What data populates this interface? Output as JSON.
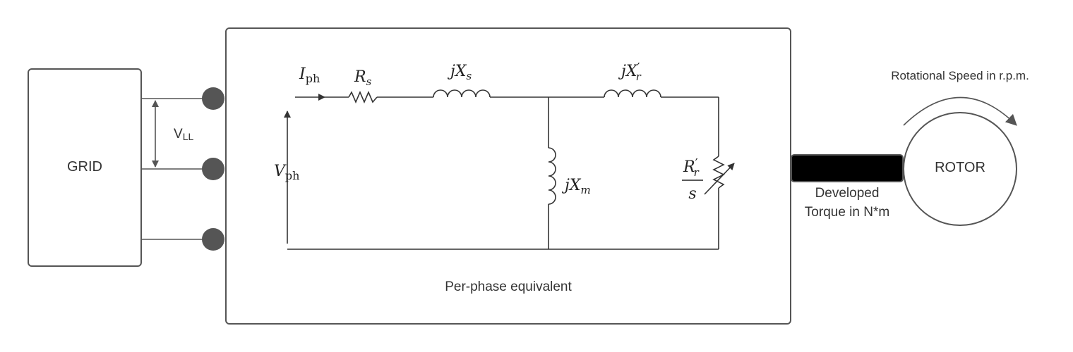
{
  "blocks": {
    "grid": "GRID",
    "rotor": "ROTOR",
    "per_phase_caption": "Per-phase equivalent"
  },
  "labels": {
    "vll_main": "V",
    "vll_sub": "LL",
    "rotational_speed": "Rotational Speed in r.p.m.",
    "torque_line1": "Developed",
    "torque_line2": "Torque in N*m"
  },
  "circuit": {
    "iph": "I",
    "iph_sub": "ph",
    "vph": "V",
    "vph_sub": "ph",
    "rs": "R",
    "rs_sub": "s",
    "jxs": "jX",
    "jxs_sub": "s",
    "jxr": "jX",
    "jxr_prime": "′",
    "jxr_sub": "r",
    "jxm": "jX",
    "jxm_sub": "m",
    "rr": "R",
    "rr_prime": "′",
    "rr_sub": "r",
    "slip": "s"
  },
  "colors": {
    "terminal": "#555555",
    "shaft": "#000000",
    "outline": "#555555"
  }
}
